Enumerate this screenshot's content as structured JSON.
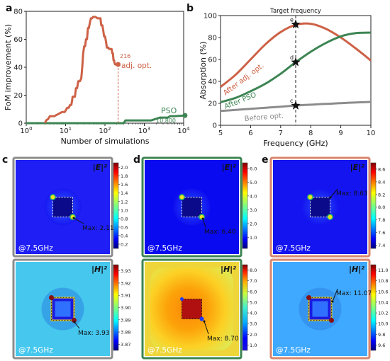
{
  "chart_data": [
    {
      "type": "line",
      "panel_label": "a",
      "xlabel": "Number of simulations",
      "ylabel": "FoM improvement (%)",
      "xscale": "log",
      "xlim": [
        1,
        10000
      ],
      "ylim": [
        0,
        80
      ],
      "xticks": [
        "10^0",
        "10^1",
        "10^2",
        "10^3",
        "10^4"
      ],
      "yticks": [
        "0",
        "20",
        "40",
        "60",
        "80"
      ],
      "series": [
        {
          "name": "adj. opt.",
          "color": "#cd6146",
          "x": [
            3,
            3.2,
            3.6,
            4,
            4.6,
            5.2,
            6,
            7,
            8.2,
            9.5,
            11,
            12,
            13,
            14,
            14.6,
            15.1,
            17.3,
            18.3,
            19.6,
            21,
            23,
            25,
            26.5,
            28,
            29.6,
            31.3,
            33,
            35,
            37,
            39,
            41.5,
            44,
            47,
            50,
            58,
            65,
            70,
            77,
            80.6,
            86,
            91,
            95,
            101,
            107,
            112,
            117,
            122,
            128,
            143,
            148,
            154,
            159,
            165,
            170,
            176,
            182,
            189,
            197,
            216
          ],
          "y": [
            0,
            2,
            3,
            5,
            5,
            5,
            6,
            7,
            8,
            8,
            11,
            11,
            13,
            13,
            16,
            19,
            19,
            25,
            25,
            30,
            30,
            32,
            40,
            50,
            55,
            55,
            60,
            60,
            68,
            68,
            72,
            75,
            75,
            76,
            76,
            75,
            75,
            75,
            70,
            70,
            66,
            62,
            62,
            58,
            54,
            54,
            54,
            53,
            53,
            53,
            50,
            50,
            45,
            45,
            43,
            42,
            42,
            42,
            42
          ]
        },
        {
          "name": "PSO",
          "color": "#3d8553",
          "x": [
            1,
            100,
            300,
            330,
            600,
            1000,
            1500,
            2500,
            3000,
            4000,
            4500,
            6000,
            10800
          ],
          "y": [
            0,
            0,
            0,
            2,
            2,
            2,
            2,
            4,
            4,
            4,
            5,
            5,
            5.5
          ]
        }
      ],
      "annotations": [
        {
          "text": "216",
          "x": 216,
          "y": 42
        },
        {
          "text": "adj. opt.",
          "x": 216,
          "y": 42
        },
        {
          "text": "PSO",
          "x": 10800,
          "y": 5.5
        },
        {
          "text": "10,800",
          "x": 10800,
          "y": 5.5
        }
      ]
    },
    {
      "type": "line",
      "panel_label": "b",
      "xlabel": "Frequency (GHz)",
      "ylabel": "Absorption (%)",
      "xlim": [
        5,
        10
      ],
      "ylim": [
        0,
        100
      ],
      "xticks": [
        "5",
        "6",
        "7",
        "8",
        "9",
        "10"
      ],
      "yticks": [
        "0",
        "20",
        "40",
        "60",
        "80",
        "100"
      ],
      "series": [
        {
          "name": "After adj. opt.",
          "color": "#cd6146",
          "x": [
            5.0,
            5.5,
            6.0,
            6.5,
            7.0,
            7.5,
            8.0,
            8.5,
            9.0,
            9.5,
            10.0
          ],
          "y": [
            35,
            46,
            60,
            74,
            85,
            91.5,
            92.5,
            88,
            80,
            70,
            59
          ]
        },
        {
          "name": "After PSO",
          "color": "#3d8553",
          "x": [
            5.0,
            5.5,
            6.0,
            6.5,
            7.0,
            7.5,
            8.0,
            8.5,
            9.0,
            9.5,
            10.0
          ],
          "y": [
            21,
            25,
            31,
            38,
            47,
            57.5,
            67,
            75,
            81,
            84,
            84.5
          ]
        },
        {
          "name": "Before opt.",
          "color": "#8c8c8c",
          "x": [
            5.0,
            5.5,
            6.0,
            6.5,
            7.0,
            7.5,
            8.0,
            8.5,
            9.0,
            9.5,
            10.0
          ],
          "y": [
            13,
            14,
            15,
            16,
            17,
            18,
            18.8,
            19.5,
            20.2,
            20.8,
            21.3
          ]
        }
      ],
      "markers": [
        {
          "letter": "e",
          "x": 7.5,
          "y": 92
        },
        {
          "letter": "d",
          "x": 7.5,
          "y": 57.5
        },
        {
          "letter": "c",
          "x": 7.5,
          "y": 18
        }
      ],
      "target_line_label": "Target frequency",
      "target_x": 7.5
    },
    {
      "type": "heatmap",
      "panels": [
        {
          "panel_label": "c",
          "frame_color": "#8c8c8c",
          "maps": [
            {
              "field": "|E|²",
              "annotation": "Max: 2.11",
              "freq_label": "@7.5GHz",
              "ticks": [
                "0.2",
                "0.4",
                "0.6",
                "0.8",
                "1.0",
                "1.2",
                "1.4",
                "1.6",
                "1.8",
                "2.0"
              ],
              "range": [
                0.1,
                2.11
              ]
            },
            {
              "field": "|H|²",
              "annotation": "Max: 3.93",
              "freq_label": "@7.5GHz",
              "ticks": [
                "3.87",
                "3.88",
                "3.89",
                "3.90",
                "3.91",
                "3.92",
                "3.93"
              ],
              "range": [
                3.865,
                3.935
              ]
            }
          ]
        },
        {
          "panel_label": "d",
          "frame_color": "#3d8553",
          "maps": [
            {
              "field": "|E|²",
              "annotation": "Max: 6.40",
              "freq_label": "@7.5GHz",
              "ticks": [
                "1.0",
                "2.0",
                "3.0",
                "4.0",
                "5.0",
                "6.0"
              ],
              "range": [
                0.2,
                6.4
              ]
            },
            {
              "field": "|H|²",
              "annotation": "Max: 8.70",
              "freq_label": "@7.5GHz",
              "ticks": [
                "1.0",
                "2.0",
                "3.0",
                "4.0",
                "5.0",
                "6.0",
                "7.0",
                "8.0"
              ],
              "range": [
                0.5,
                8.5
              ]
            }
          ]
        },
        {
          "panel_label": "e",
          "frame_color": "#d9866f",
          "maps": [
            {
              "field": "|E|²",
              "annotation": "Max: 8.63",
              "freq_label": "@7.5GHz",
              "ticks": [
                "7.4",
                "7.6",
                "7.8",
                "8.0",
                "8.2",
                "8.4",
                "8.6"
              ],
              "range": [
                7.35,
                8.7
              ]
            },
            {
              "field": "|H|²",
              "annotation": "Max: 11.07",
              "freq_label": "@7.5GHz",
              "ticks": [
                "9.6",
                "9.8",
                "10.0",
                "10.2",
                "10.4",
                "10.6",
                "10.8",
                "11.0"
              ],
              "range": [
                9.5,
                11.1
              ]
            }
          ]
        }
      ]
    }
  ]
}
